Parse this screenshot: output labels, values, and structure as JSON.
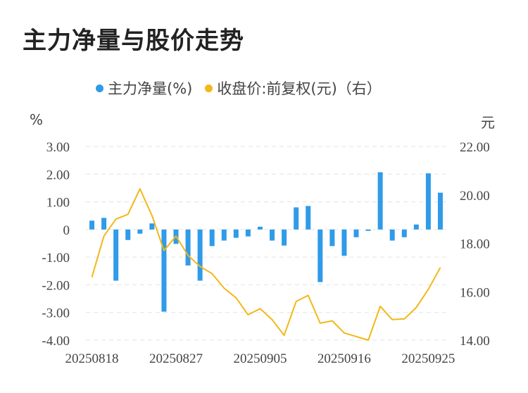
{
  "title": "主力净量与股价走势",
  "legend": {
    "items": [
      {
        "label": "主力净量(%)",
        "color": "#2f9be9"
      },
      {
        "label": "收盘价:前复权(元)（右）",
        "color": "#f2b818"
      }
    ]
  },
  "units": {
    "left": "%",
    "right": "元"
  },
  "chart_data": {
    "type": "bar+line",
    "x": [
      "20250818",
      "20250819",
      "20250820",
      "20250821",
      "20250822",
      "20250825",
      "20250826",
      "20250827",
      "20250828",
      "20250829",
      "20250901",
      "20250902",
      "20250903",
      "20250904",
      "20250905",
      "20250908",
      "20250909",
      "20250910",
      "20250911",
      "20250912",
      "20250915",
      "20250916",
      "20250917",
      "20250918",
      "20250919",
      "20250922",
      "20250923",
      "20250924",
      "20250925",
      "20250926"
    ],
    "x_tick_labels": [
      "20250818",
      "20250827",
      "20250905",
      "20250916",
      "20250925"
    ],
    "series": [
      {
        "name": "主力净量(%)",
        "type": "bar",
        "axis": "left",
        "color": "#2f9be9",
        "values": [
          0.32,
          0.42,
          -1.85,
          -0.38,
          -0.15,
          0.22,
          -2.97,
          -0.52,
          -1.3,
          -1.85,
          -0.6,
          -0.4,
          -0.3,
          -0.25,
          0.1,
          -0.4,
          -0.58,
          0.8,
          0.85,
          -1.9,
          -0.6,
          -0.95,
          -0.28,
          -0.05,
          2.07,
          -0.4,
          -0.28,
          0.18,
          2.03,
          1.33
        ]
      },
      {
        "name": "收盘价:前复权(元)（右）",
        "type": "line",
        "axis": "right",
        "color": "#f2b818",
        "values": [
          16.6,
          18.3,
          19.0,
          19.2,
          20.25,
          19.15,
          17.7,
          18.3,
          17.5,
          17.05,
          16.75,
          16.15,
          15.75,
          15.05,
          15.3,
          14.85,
          14.2,
          15.6,
          15.85,
          14.7,
          14.8,
          14.3,
          14.15,
          14.0,
          15.4,
          14.85,
          14.88,
          15.35,
          16.1,
          17.0
        ]
      }
    ],
    "y_left": {
      "ticks": [
        "3.00",
        "2.00",
        "1.00",
        "0",
        "-1.00",
        "-2.00",
        "-3.00",
        "-4.00"
      ],
      "range": [
        -4,
        3
      ]
    },
    "y_right": {
      "ticks": [
        "22.00",
        "20.00",
        "18.00",
        "16.00",
        "14.00"
      ],
      "range": [
        14,
        22
      ]
    },
    "grid": true,
    "legend_position": "top"
  }
}
